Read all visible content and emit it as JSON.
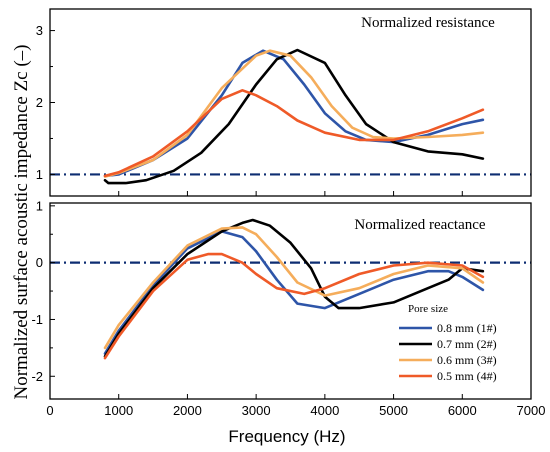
{
  "chart_data": [
    {
      "type": "line",
      "title": "Normalized resistance",
      "xlim": [
        0,
        7000
      ],
      "ylim": [
        0.7,
        3.3
      ],
      "yticks": [
        1,
        2,
        3
      ],
      "reference_line": 1.0,
      "series": [
        {
          "name": "0.8 mm (1#)",
          "color": "#2e55a8",
          "x": [
            800,
            1000,
            1500,
            2000,
            2500,
            2800,
            3100,
            3400,
            3700,
            4000,
            4300,
            4600,
            5000,
            5500,
            6000,
            6300
          ],
          "values": [
            0.98,
            1.0,
            1.2,
            1.5,
            2.1,
            2.55,
            2.72,
            2.6,
            2.25,
            1.85,
            1.6,
            1.48,
            1.45,
            1.55,
            1.7,
            1.76
          ]
        },
        {
          "name": "0.7 mm (2#)",
          "color": "#000000",
          "x": [
            800,
            850,
            950,
            1100,
            1400,
            1800,
            2200,
            2600,
            3000,
            3300,
            3600,
            4000,
            4300,
            4600,
            5000,
            5500,
            6000,
            6300
          ],
          "values": [
            0.92,
            0.88,
            0.88,
            0.88,
            0.92,
            1.05,
            1.3,
            1.7,
            2.25,
            2.6,
            2.73,
            2.55,
            2.1,
            1.7,
            1.45,
            1.32,
            1.28,
            1.22
          ]
        },
        {
          "name": "0.6 mm (3#)",
          "color": "#f5ad5b",
          "x": [
            800,
            1000,
            1500,
            2000,
            2500,
            3000,
            3200,
            3500,
            3800,
            4100,
            4400,
            4700,
            5000,
            5500,
            6000,
            6300
          ],
          "values": [
            0.97,
            1.02,
            1.2,
            1.55,
            2.2,
            2.65,
            2.72,
            2.65,
            2.35,
            1.95,
            1.65,
            1.52,
            1.5,
            1.52,
            1.55,
            1.58
          ]
        },
        {
          "name": "0.5 mm (4#)",
          "color": "#ef5a28",
          "x": [
            800,
            1000,
            1500,
            2000,
            2500,
            2800,
            3000,
            3300,
            3600,
            4000,
            4500,
            5000,
            5500,
            6000,
            6300
          ],
          "values": [
            0.98,
            1.03,
            1.25,
            1.6,
            2.05,
            2.17,
            2.1,
            1.95,
            1.75,
            1.58,
            1.48,
            1.48,
            1.6,
            1.78,
            1.9
          ]
        }
      ]
    },
    {
      "type": "line",
      "title": "Normalized reactance",
      "xlabel": "Frequency (Hz)",
      "xlim": [
        0,
        7000
      ],
      "ylim": [
        -2.4,
        1.05
      ],
      "xticks": [
        0,
        1000,
        2000,
        3000,
        4000,
        5000,
        6000,
        7000
      ],
      "yticks": [
        -2,
        -1,
        0,
        1
      ],
      "reference_line": 0.0,
      "legend_title": "Pore size",
      "legend_position": "bottom-right",
      "series": [
        {
          "name": "0.8 mm (1#)",
          "color": "#2e55a8",
          "x": [
            800,
            1000,
            1500,
            2000,
            2500,
            2800,
            3000,
            3300,
            3600,
            4000,
            4500,
            5000,
            5500,
            5800,
            6000,
            6300
          ],
          "values": [
            -1.6,
            -1.2,
            -0.4,
            0.25,
            0.55,
            0.45,
            0.2,
            -0.3,
            -0.72,
            -0.8,
            -0.55,
            -0.3,
            -0.15,
            -0.15,
            -0.25,
            -0.48
          ]
        },
        {
          "name": "0.7 mm (2#)",
          "color": "#000000",
          "x": [
            800,
            1000,
            1500,
            2000,
            2500,
            2800,
            2950,
            3200,
            3500,
            3800,
            4000,
            4200,
            4500,
            5000,
            5500,
            5800,
            6000,
            6300
          ],
          "values": [
            -1.65,
            -1.25,
            -0.45,
            0.15,
            0.55,
            0.7,
            0.75,
            0.65,
            0.35,
            -0.1,
            -0.6,
            -0.8,
            -0.8,
            -0.7,
            -0.45,
            -0.3,
            -0.1,
            -0.15
          ]
        },
        {
          "name": "0.6 mm (3#)",
          "color": "#f5ad5b",
          "x": [
            800,
            1000,
            1500,
            2000,
            2500,
            2800,
            3000,
            3300,
            3600,
            4000,
            4500,
            5000,
            5500,
            6000,
            6300
          ],
          "values": [
            -1.5,
            -1.1,
            -0.35,
            0.3,
            0.6,
            0.62,
            0.5,
            0.1,
            -0.35,
            -0.58,
            -0.45,
            -0.2,
            -0.05,
            -0.1,
            -0.35
          ]
        },
        {
          "name": "0.5 mm (4#)",
          "color": "#ef5a28",
          "x": [
            800,
            1000,
            1500,
            2000,
            2300,
            2500,
            2800,
            3000,
            3300,
            3700,
            4000,
            4500,
            5000,
            5500,
            6000,
            6300
          ],
          "values": [
            -1.68,
            -1.3,
            -0.5,
            0.05,
            0.15,
            0.15,
            0.0,
            -0.2,
            -0.45,
            -0.55,
            -0.45,
            -0.2,
            -0.05,
            0.0,
            -0.05,
            -0.25
          ]
        }
      ]
    }
  ],
  "shared_ylabel": "Normalized surface acoustic impedance Zc (–)"
}
